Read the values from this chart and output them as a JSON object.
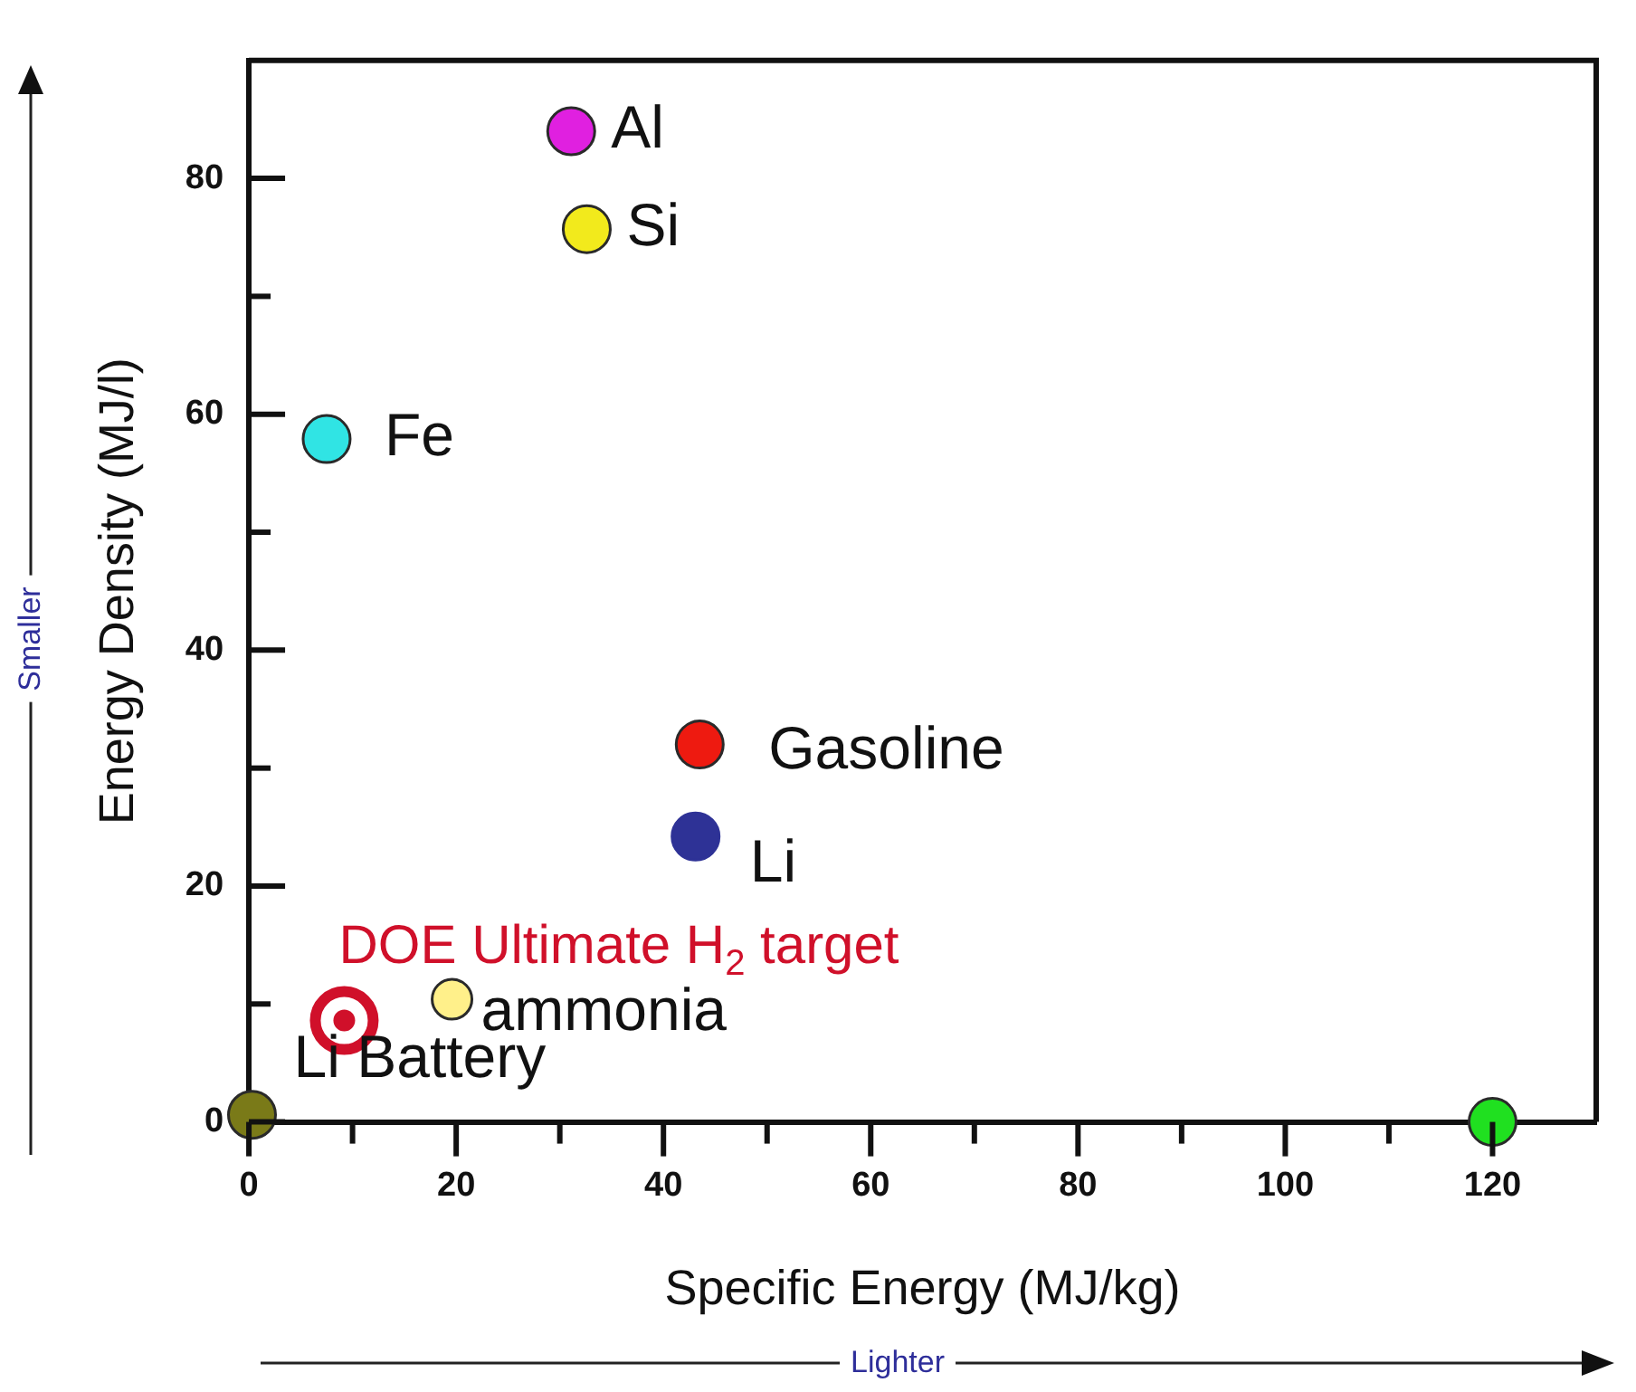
{
  "chart_data": {
    "type": "scatter",
    "xlabel": "Specific Energy (MJ/kg)",
    "ylabel": "Energy Density (MJ/l)",
    "xlim": [
      0,
      130
    ],
    "ylim": [
      0,
      90
    ],
    "xticks": [
      0,
      {
        "value": 10,
        "label": null
      },
      20,
      {
        "value": 30,
        "label": null
      },
      40,
      {
        "value": 50,
        "label": null
      },
      60,
      {
        "value": 70,
        "label": null
      },
      80,
      {
        "value": 90,
        "label": null
      },
      100,
      {
        "value": 110,
        "label": null
      },
      120
    ],
    "yticks": [
      0,
      {
        "value": 10,
        "label": null
      },
      20,
      {
        "value": 30,
        "label": null
      },
      40,
      {
        "value": 50,
        "label": null
      },
      60,
      {
        "value": 70,
        "label": null
      },
      80
    ],
    "grid": false,
    "legend": false,
    "marker": "circle",
    "series": [
      {
        "x": [
          31.1,
          32.6,
          7.5,
          43.5,
          43.1,
          19.6,
          0.3,
          120
        ],
        "values": [
          84,
          75.7,
          57.9,
          32,
          24.2,
          10.4,
          0.6,
          0
        ],
        "colors": [
          "#e020e0",
          "#f2ea1c",
          "#30e4e4",
          "#ee1a10",
          "#2e3296",
          "#fff08a",
          "#7a7a18",
          "#20e020"
        ]
      },
      {
        "x": [
          9.2
        ],
        "values": [
          8.6
        ],
        "color": "#d0102a"
      }
    ],
    "annotations": [
      {
        "text": "Al",
        "x": 31.1,
        "y": 84
      },
      {
        "text": "Si",
        "x": 32.6,
        "y": 75.7
      },
      {
        "text": "Fe",
        "x": 7.5,
        "y": 57.9
      },
      {
        "text": "Gasoline",
        "x": 43.5,
        "y": 32
      },
      {
        "text": "Li",
        "x": 43.1,
        "y": 24.2
      },
      {
        "text": "DOE Ultimate H$_{2}$ target",
        "x": 9.2,
        "y": 8.6
      },
      {
        "text": "ammonia",
        "x": 19.6,
        "y": 10.4
      },
      {
        "text": "Li Battery",
        "x": 0.3,
        "y": 0.6
      },
      "Smaller",
      "Lighter"
    ]
  }
}
